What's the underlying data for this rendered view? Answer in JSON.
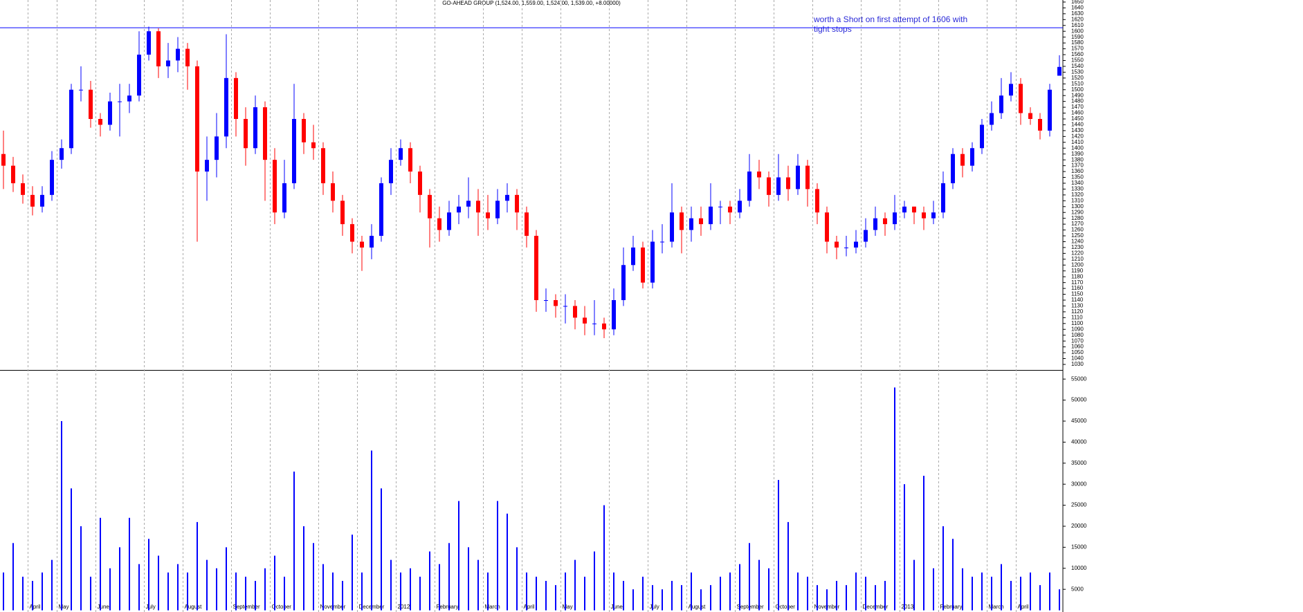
{
  "chart_data": [
    {
      "type": "candlestick",
      "title": "GO-AHEAD GROUP (1,524.00, 1,559.00, 1,524.00, 1,539.00, +8.00000)",
      "annotation": [
        "worth a Short on first attempt of 1606 with",
        "tight stops"
      ],
      "hline": 1606,
      "hline_color": "#0000ff",
      "up_color": "#0000ff",
      "down_color": "#ff0000",
      "categories": [
        null,
        null,
        null,
        "April",
        null,
        null,
        "May",
        null,
        null,
        null,
        "June",
        null,
        null,
        null,
        null,
        "July",
        null,
        null,
        null,
        "August",
        null,
        null,
        null,
        null,
        "September",
        null,
        null,
        null,
        "October",
        null,
        null,
        null,
        null,
        "November",
        null,
        null,
        null,
        "December",
        null,
        null,
        null,
        "2012",
        null,
        null,
        null,
        "February",
        null,
        null,
        null,
        null,
        "March",
        null,
        null,
        null,
        "April",
        null,
        null,
        null,
        "May",
        null,
        null,
        null,
        null,
        "June",
        null,
        null,
        null,
        "July",
        null,
        null,
        null,
        "August",
        null,
        null,
        null,
        null,
        "September",
        null,
        null,
        null,
        "October",
        null,
        null,
        null,
        "November",
        null,
        null,
        null,
        null,
        "December",
        null,
        null,
        null,
        "2013",
        null,
        null,
        null,
        "February",
        null,
        null,
        null,
        null,
        "March",
        null,
        null,
        "April",
        null,
        null,
        null,
        null
      ],
      "open": [
        1390,
        1370,
        1340,
        1320,
        1300,
        1320,
        1380,
        1400,
        1500,
        1500,
        1450,
        1440,
        1480,
        1480,
        1490,
        1560,
        1600,
        1540,
        1550,
        1570,
        1540,
        1360,
        1380,
        1420,
        1520,
        1450,
        1400,
        1470,
        1380,
        1290,
        1340,
        1450,
        1410,
        1400,
        1340,
        1310,
        1270,
        1240,
        1230,
        1250,
        1340,
        1380,
        1400,
        1360,
        1320,
        1280,
        1260,
        1290,
        1300,
        1310,
        1290,
        1280,
        1310,
        1320,
        1290,
        1250,
        1140,
        1140,
        1130,
        1130,
        1110,
        1100,
        1100,
        1090,
        1140,
        1200,
        1230,
        1170,
        1240,
        1240,
        1290,
        1260,
        1280,
        1270,
        1300,
        1300,
        1290,
        1310,
        1360,
        1350,
        1320,
        1350,
        1330,
        1370,
        1330,
        1290,
        1240,
        1230,
        1230,
        1240,
        1260,
        1280,
        1270,
        1290,
        1300,
        1290,
        1280,
        1290,
        1340,
        1390,
        1370,
        1400,
        1440,
        1460,
        1490,
        1510,
        1460,
        1450,
        1430,
        1524
      ],
      "high": [
        1430,
        1385,
        1355,
        1335,
        1335,
        1395,
        1415,
        1510,
        1540,
        1515,
        1460,
        1495,
        1510,
        1510,
        1600,
        1608,
        1605,
        1580,
        1590,
        1580,
        1550,
        1420,
        1460,
        1595,
        1530,
        1470,
        1490,
        1480,
        1400,
        1380,
        1510,
        1460,
        1440,
        1410,
        1360,
        1320,
        1280,
        1250,
        1270,
        1350,
        1400,
        1415,
        1410,
        1370,
        1330,
        1300,
        1310,
        1320,
        1350,
        1330,
        1320,
        1330,
        1340,
        1330,
        1300,
        1260,
        1160,
        1150,
        1150,
        1140,
        1130,
        1140,
        1110,
        1160,
        1230,
        1250,
        1240,
        1260,
        1270,
        1340,
        1300,
        1300,
        1300,
        1340,
        1310,
        1310,
        1330,
        1390,
        1380,
        1360,
        1390,
        1370,
        1390,
        1380,
        1340,
        1300,
        1250,
        1250,
        1260,
        1280,
        1300,
        1290,
        1320,
        1310,
        1300,
        1300,
        1310,
        1360,
        1400,
        1400,
        1410,
        1450,
        1480,
        1520,
        1530,
        1520,
        1470,
        1460,
        1510,
        1559
      ],
      "low": [
        1330,
        1325,
        1305,
        1285,
        1290,
        1310,
        1365,
        1390,
        1480,
        1435,
        1420,
        1430,
        1420,
        1460,
        1480,
        1550,
        1520,
        1520,
        1530,
        1500,
        1240,
        1310,
        1350,
        1400,
        1420,
        1370,
        1390,
        1310,
        1270,
        1280,
        1330,
        1390,
        1380,
        1320,
        1290,
        1250,
        1220,
        1190,
        1210,
        1240,
        1320,
        1370,
        1340,
        1290,
        1230,
        1240,
        1250,
        1270,
        1280,
        1250,
        1260,
        1270,
        1290,
        1260,
        1230,
        1120,
        1120,
        1110,
        1100,
        1090,
        1080,
        1080,
        1075,
        1080,
        1130,
        1190,
        1160,
        1160,
        1220,
        1230,
        1220,
        1240,
        1250,
        1260,
        1270,
        1270,
        1280,
        1300,
        1330,
        1300,
        1310,
        1310,
        1320,
        1300,
        1270,
        1220,
        1210,
        1215,
        1220,
        1230,
        1250,
        1250,
        1260,
        1280,
        1270,
        1260,
        1270,
        1280,
        1330,
        1350,
        1360,
        1390,
        1430,
        1450,
        1480,
        1440,
        1440,
        1415,
        1420,
        1524
      ],
      "close": [
        1370,
        1340,
        1320,
        1300,
        1320,
        1380,
        1400,
        1500,
        1500,
        1450,
        1440,
        1480,
        1480,
        1490,
        1560,
        1600,
        1540,
        1550,
        1570,
        1540,
        1360,
        1380,
        1420,
        1520,
        1450,
        1400,
        1470,
        1380,
        1290,
        1340,
        1450,
        1410,
        1400,
        1340,
        1310,
        1270,
        1240,
        1230,
        1250,
        1340,
        1380,
        1400,
        1360,
        1320,
        1280,
        1260,
        1290,
        1300,
        1310,
        1290,
        1280,
        1310,
        1320,
        1290,
        1250,
        1140,
        1140,
        1130,
        1130,
        1110,
        1100,
        1100,
        1090,
        1140,
        1200,
        1230,
        1170,
        1240,
        1240,
        1290,
        1260,
        1280,
        1270,
        1300,
        1300,
        1290,
        1310,
        1360,
        1350,
        1320,
        1350,
        1330,
        1370,
        1330,
        1290,
        1240,
        1230,
        1230,
        1240,
        1260,
        1280,
        1270,
        1290,
        1300,
        1290,
        1280,
        1290,
        1340,
        1390,
        1370,
        1400,
        1440,
        1460,
        1490,
        1510,
        1460,
        1450,
        1430,
        1500,
        1539
      ],
      "ylim": [
        1020.5,
        1653.5
      ],
      "yticks": [
        1030,
        1040,
        1050,
        1060,
        1070,
        1080,
        1090,
        1100,
        1110,
        1120,
        1130,
        1140,
        1150,
        1160,
        1170,
        1180,
        1190,
        1200,
        1210,
        1220,
        1230,
        1240,
        1250,
        1260,
        1270,
        1280,
        1290,
        1300,
        1310,
        1320,
        1330,
        1340,
        1350,
        1360,
        1370,
        1380,
        1390,
        1400,
        1410,
        1420,
        1430,
        1440,
        1450,
        1460,
        1470,
        1480,
        1490,
        1500,
        1510,
        1520,
        1530,
        1540,
        1550,
        1560,
        1570,
        1580,
        1590,
        1600,
        1610,
        1620,
        1630,
        1640,
        1650
      ]
    },
    {
      "type": "bar",
      "color": "#0000ff",
      "values": [
        9000,
        16000,
        8000,
        7000,
        9000,
        12000,
        45000,
        29000,
        20000,
        8000,
        22000,
        10000,
        15000,
        22000,
        11000,
        17000,
        13000,
        9000,
        11000,
        9000,
        21000,
        12000,
        10000,
        15000,
        9000,
        8000,
        7000,
        10000,
        13000,
        8000,
        33000,
        20000,
        16000,
        11000,
        9000,
        7000,
        18000,
        9000,
        38000,
        29000,
        12000,
        9000,
        10000,
        8000,
        14000,
        11000,
        16000,
        26000,
        15000,
        12000,
        9000,
        26000,
        23000,
        15000,
        9000,
        8000,
        7000,
        6000,
        9000,
        12000,
        8000,
        14000,
        25000,
        9000,
        7000,
        5000,
        8000,
        6000,
        5000,
        7000,
        6000,
        9000,
        5000,
        6000,
        8000,
        9000,
        11000,
        16000,
        12000,
        10000,
        31000,
        21000,
        9000,
        8000,
        6000,
        5000,
        7000,
        6000,
        9000,
        8000,
        6000,
        7000,
        53000,
        30000,
        12000,
        32000,
        10000,
        20000,
        17000,
        10000,
        8000,
        9000,
        8000,
        11000,
        7000,
        8000,
        9000,
        6000,
        9000,
        5000
      ],
      "ylim": [
        0,
        57000
      ],
      "yticks": [
        5000,
        10000,
        15000,
        20000,
        25000,
        30000,
        35000,
        40000,
        45000,
        50000,
        55000
      ]
    }
  ]
}
